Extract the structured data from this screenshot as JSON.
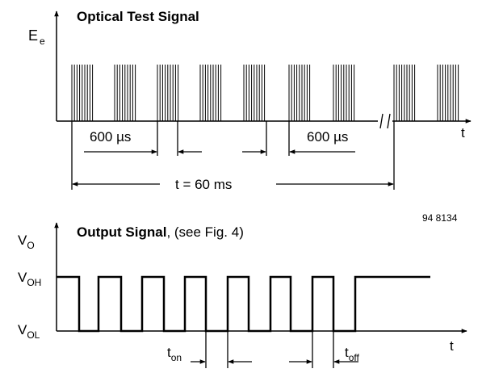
{
  "optical": {
    "title": "Optical Test Signal",
    "y_label": "E",
    "y_label_sub": "e",
    "x_label": "t",
    "interval_label_left": "600 µs",
    "interval_label_right": "600 µs",
    "period_label": "t = 60 ms"
  },
  "figure_id": "94 8134",
  "output": {
    "title_bold": "Output Signal",
    "title_rest": ", (see Fig. 4)",
    "y_label": "V",
    "y_label_sub": "O",
    "high_label": "V",
    "high_label_sub": "OH",
    "low_label": "V",
    "low_label_sub": "OL",
    "x_label": "t",
    "t_on": "t",
    "t_on_sub": "on",
    "t_off": "t",
    "t_off_sub": "off"
  },
  "colors": {
    "line": "#000000",
    "background": "#ffffff"
  }
}
